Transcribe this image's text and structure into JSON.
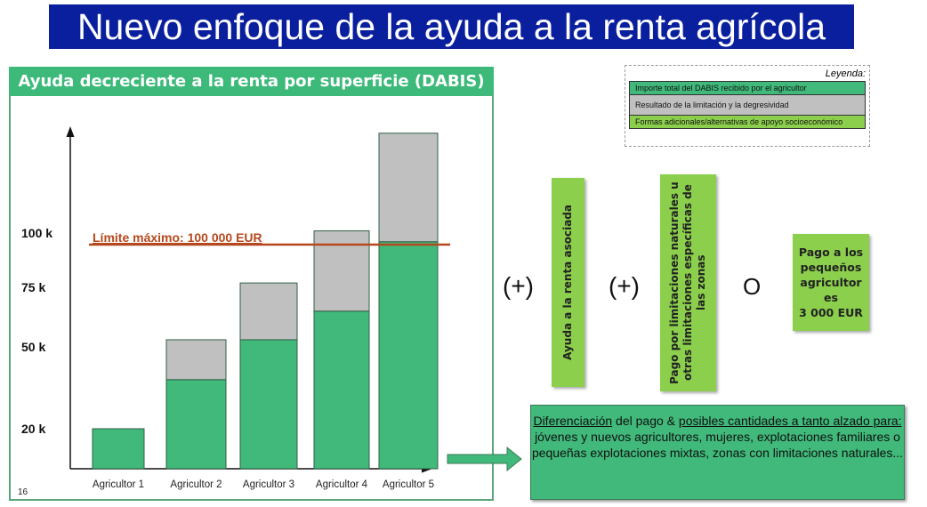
{
  "title": "Nuevo enfoque de la ayuda a la renta agrícola",
  "panel": {
    "header": "Ayuda decreciente a la renta por superficie (DABIS)",
    "page_number": "16"
  },
  "chart_data": {
    "type": "bar",
    "stacked": true,
    "categories": [
      "Agricultor 1",
      "Agricultor 2",
      "Agricultor 3",
      "Agricultor 4",
      "Agricultor 5"
    ],
    "series": [
      {
        "name": "Importe total del DABIS recibido por el agricultor",
        "color": "#40b97a",
        "values": [
          20,
          38,
          53,
          65,
          96
        ]
      },
      {
        "name": "Resultado de la limitación y la degresividad",
        "color": "#c0c0c0",
        "values": [
          0,
          15,
          24,
          36,
          50
        ]
      }
    ],
    "yticks": [
      {
        "value": 20,
        "label": "20 k"
      },
      {
        "value": 50,
        "label": "50 k"
      },
      {
        "value": 75,
        "label": "75 k"
      },
      {
        "value": 100,
        "label": "100 k"
      }
    ],
    "unit": "k EUR",
    "limit": {
      "value": 100,
      "label": "Límite máximo: 100 000 EUR",
      "color": "#b5481e"
    },
    "grid": false
  },
  "legend": {
    "title": "Leyenda:",
    "items": [
      {
        "label": "Importe total del DABIS recibido por el agricultor",
        "color": "#40b97a"
      },
      {
        "label": "Resultado de la limitación y la degresividad",
        "color": "#c0c0c0"
      },
      {
        "label": "Formas adicionales/alternativas de apoyo socioeconómico",
        "color": "#8bcf4c"
      }
    ]
  },
  "operators": {
    "plus1": "(+)",
    "plus2": "(+)",
    "or": "O"
  },
  "boxes": {
    "coupled": "Ayuda a la renta asociada",
    "anc": "Pago por limitaciones naturales u otras limitaciones específicas de las zonas",
    "small_l1": "Pago a los",
    "small_l2": "pequeños",
    "small_l3": "agricultor",
    "small_l4": "es",
    "small_l5": "3 000 EUR"
  },
  "bottom": {
    "u1": "Diferenciación",
    "t1": " del pago & ",
    "u2": "posibles cantidades a tanto alzado para:",
    "body": "jóvenes y nuevos agricultores, mujeres, explotaciones familiares o pequeñas explotaciones mixtas, zonas con limitaciones naturales..."
  }
}
